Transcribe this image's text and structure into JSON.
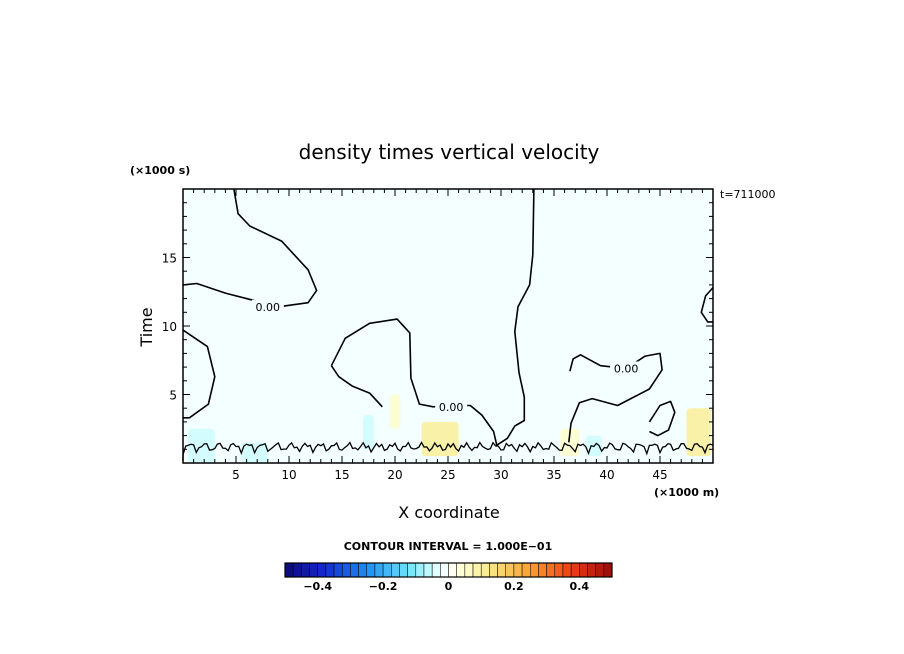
{
  "chart_data": {
    "type": "contour",
    "title": "density times vertical velocity",
    "xlabel": "X coordinate",
    "ylabel": "Time",
    "x_units": "(×1000 m)",
    "y_units": "(×1000 s)",
    "time_stamp": "t=711000",
    "xlim": [
      0,
      50
    ],
    "ylim": [
      0,
      20
    ],
    "x_ticks": [
      5,
      10,
      15,
      20,
      25,
      30,
      35,
      40,
      45
    ],
    "y_ticks": [
      5,
      10,
      15
    ],
    "contour_level_label": "0.00",
    "contour_interval_text": "CONTOUR INTERVAL = 1.000E−01",
    "colorbar": {
      "range": [
        -0.5,
        0.5
      ],
      "tick_values": [
        -0.4,
        -0.2,
        0,
        0.2,
        0.4
      ],
      "tick_labels": [
        "−0.4",
        "−0.2",
        "0",
        "0.2",
        "0.4"
      ]
    },
    "contours": [
      {
        "label": "0.00",
        "label_x": 8.0,
        "label_y": 11.4,
        "points": [
          [
            4.8,
            20
          ],
          [
            5.2,
            18.2
          ],
          [
            6.3,
            17.3
          ],
          [
            9.3,
            16.2
          ],
          [
            11.8,
            14.1
          ],
          [
            12.6,
            12.6
          ],
          [
            11.8,
            11.7
          ],
          [
            9.0,
            11.4
          ],
          [
            4.0,
            12.4
          ],
          [
            1.3,
            13.1
          ],
          [
            0,
            13.0
          ]
        ]
      },
      {
        "label": "",
        "label_x": null,
        "label_y": null,
        "points": [
          [
            0,
            9.7
          ],
          [
            2.3,
            8.5
          ],
          [
            3.0,
            6.3
          ],
          [
            2.4,
            4.3
          ],
          [
            0.6,
            3.3
          ],
          [
            0,
            3.3
          ]
        ]
      },
      {
        "label": "0.00",
        "label_x": 25.3,
        "label_y": 4.1,
        "points": [
          [
            14.0,
            7.1
          ],
          [
            15.3,
            9.1
          ],
          [
            17.6,
            10.2
          ],
          [
            20.2,
            10.5
          ],
          [
            21.4,
            9.5
          ],
          [
            21.5,
            6.2
          ],
          [
            22.3,
            4.3
          ],
          [
            23.6,
            4.1
          ],
          [
            25.3,
            4.2
          ],
          [
            27.1,
            4.2
          ],
          [
            28.2,
            3.5
          ],
          [
            29.3,
            2.3
          ],
          [
            29.6,
            1.3
          ],
          [
            30.6,
            1.8
          ],
          [
            31.3,
            2.7
          ],
          [
            32.2,
            3.1
          ],
          [
            32.2,
            4.8
          ],
          [
            31.7,
            6.6
          ],
          [
            31.3,
            9.6
          ],
          [
            31.6,
            11.4
          ],
          [
            32.7,
            13.0
          ],
          [
            33.0,
            15.2
          ],
          [
            33.1,
            20
          ]
        ]
      },
      {
        "label": "",
        "label_x": null,
        "label_y": null,
        "points": [
          [
            14.0,
            7.1
          ],
          [
            14.7,
            6.3
          ],
          [
            16.0,
            5.6
          ],
          [
            17.6,
            5.1
          ],
          [
            18.8,
            4.1
          ]
        ]
      },
      {
        "label": "0.00",
        "label_x": 41.8,
        "label_y": 6.9,
        "points": [
          [
            36.5,
            6.7
          ],
          [
            36.8,
            7.6
          ],
          [
            37.5,
            7.9
          ],
          [
            39.4,
            7.1
          ],
          [
            41.8,
            6.9
          ],
          [
            43.6,
            7.8
          ],
          [
            45.0,
            8.0
          ],
          [
            45.2,
            6.8
          ],
          [
            44.0,
            5.4
          ],
          [
            41.0,
            4.2
          ],
          [
            38.6,
            4.7
          ],
          [
            37.4,
            4.4
          ],
          [
            36.6,
            2.9
          ],
          [
            36.4,
            1.5
          ]
        ]
      },
      {
        "label": "",
        "label_x": null,
        "label_y": null,
        "points": [
          [
            50,
            12.8
          ],
          [
            49.3,
            12.2
          ],
          [
            48.9,
            11.0
          ],
          [
            49.5,
            10.3
          ],
          [
            50,
            10.3
          ]
        ]
      },
      {
        "label": "",
        "label_x": null,
        "label_y": null,
        "points": [
          [
            44.0,
            3.0
          ],
          [
            45.0,
            4.2
          ],
          [
            46.0,
            4.5
          ],
          [
            46.4,
            3.7
          ],
          [
            45.8,
            2.4
          ],
          [
            44.8,
            2.0
          ],
          [
            44.0,
            2.3
          ]
        ]
      }
    ],
    "colored_regions": [
      {
        "value": 0.05,
        "x_range": [
          19.5,
          20.5
        ],
        "y_range": [
          2.5,
          5.0
        ]
      },
      {
        "value": 0.1,
        "x_range": [
          22.5,
          26.0
        ],
        "y_range": [
          0.5,
          3.0
        ]
      },
      {
        "value": 0.05,
        "x_range": [
          35.6,
          37.4
        ],
        "y_range": [
          0.5,
          2.5
        ]
      },
      {
        "value": 0.1,
        "x_range": [
          47.5,
          49.8
        ],
        "y_range": [
          0.5,
          4.0
        ]
      },
      {
        "value": -0.05,
        "x_range": [
          0.5,
          3.0
        ],
        "y_range": [
          0,
          2.5
        ]
      },
      {
        "value": -0.05,
        "x_range": [
          5.5,
          8.0
        ],
        "y_range": [
          0,
          1.5
        ]
      },
      {
        "value": -0.05,
        "x_range": [
          17.0,
          18.0
        ],
        "y_range": [
          1.0,
          3.5
        ]
      },
      {
        "value": -0.05,
        "x_range": [
          38.0,
          39.5
        ],
        "y_range": [
          0.5,
          2.0
        ]
      }
    ]
  }
}
